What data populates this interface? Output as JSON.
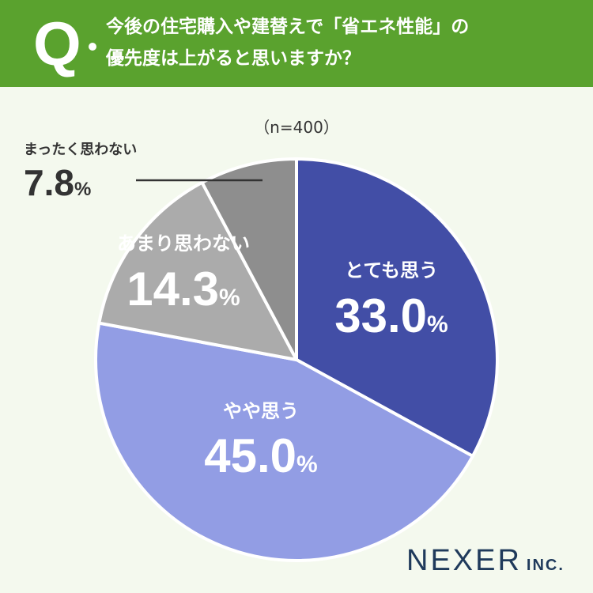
{
  "question": {
    "marker": "Q",
    "line1": "今後の住宅購入や建替えで「省エネ性能」の",
    "line2": "優先度は上がると思いますか？"
  },
  "sample_label": "（n=400）",
  "logo": {
    "main": "NEXER",
    "sub": "INC."
  },
  "percent_sign": "%",
  "chart_data": {
    "type": "pie",
    "categories": [
      "とても思う",
      "やや思う",
      "あまり思わない",
      "まったく思わない"
    ],
    "values": [
      33.0,
      45.0,
      14.3,
      7.8
    ],
    "value_labels": [
      "33.0",
      "45.0",
      "14.3",
      "7.8"
    ],
    "colors": [
      "#424ea6",
      "#929de4",
      "#ababab",
      "#8e8e8e"
    ],
    "start": "12 o'clock, clockwise",
    "unit": "%"
  }
}
